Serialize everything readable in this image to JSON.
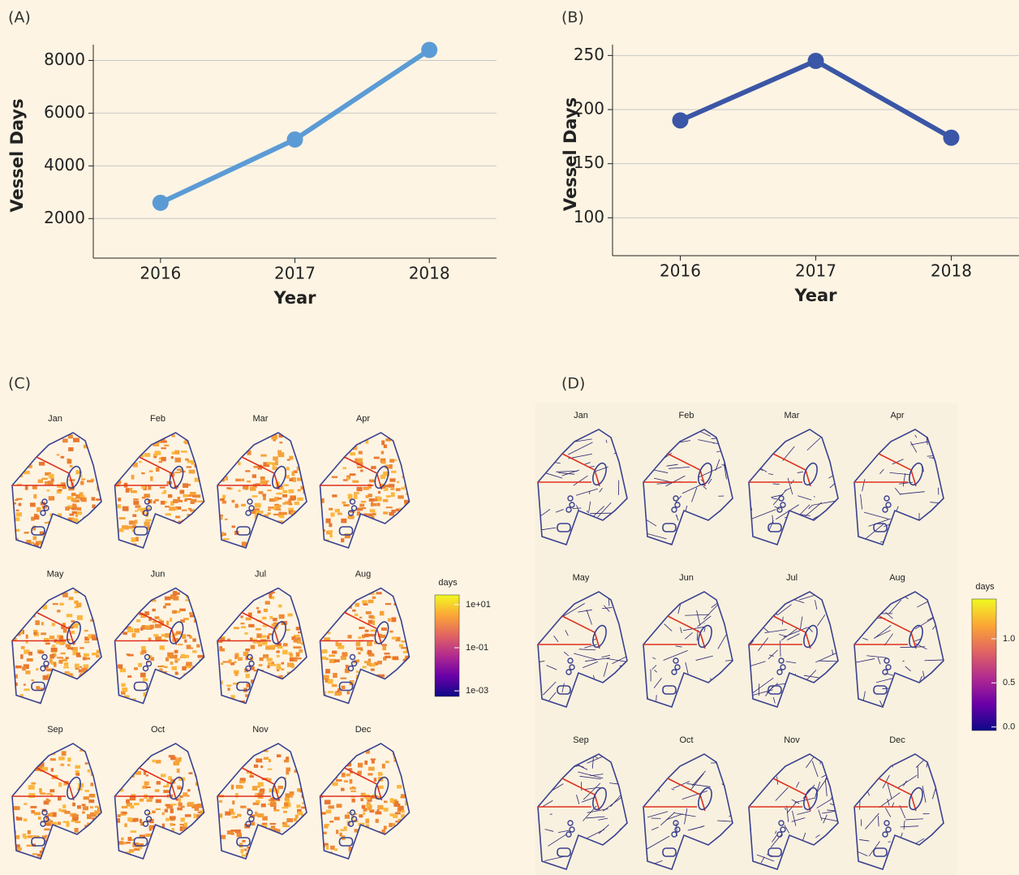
{
  "chart_data": [
    {
      "type": "line",
      "panel": "(A)",
      "x_label": "Year",
      "y_label": "Vessel Days",
      "categories": [
        "2016",
        "2017",
        "2018"
      ],
      "series": [
        {
          "color": "#5b9bd5",
          "values": [
            2600,
            5000,
            8400
          ]
        }
      ],
      "ylim": [
        500,
        8600
      ],
      "yticks": [
        2000,
        4000,
        6000,
        8000
      ],
      "grid": true
    },
    {
      "type": "line",
      "panel": "(B)",
      "x_label": "Year",
      "y_label": "Vessel Days",
      "categories": [
        "2016",
        "2017",
        "2018"
      ],
      "series": [
        {
          "color": "#3b56a6",
          "values": [
            190,
            245,
            174
          ]
        }
      ],
      "ylim": [
        65,
        260
      ],
      "yticks": [
        100,
        150,
        200,
        250
      ],
      "grid": true
    },
    {
      "type": "map",
      "panel": "(C)",
      "style": "heat",
      "categories": [
        "Jan",
        "Feb",
        "Mar",
        "Apr",
        "May",
        "Jun",
        "Jul",
        "Aug",
        "Sep",
        "Oct",
        "Nov",
        "Dec"
      ],
      "colorbar": {
        "title": "days",
        "log": true,
        "ylim": [
          0.00055,
          28
        ],
        "yticks": [
          {
            "value": 10,
            "label": "1e+01"
          },
          {
            "value": 0.1,
            "label": "1e-01"
          },
          {
            "value": 0.001,
            "label": "1e-03"
          }
        ],
        "colors": [
          "#0d0887",
          "#6a00a8",
          "#b12a90",
          "#e16462",
          "#fca636",
          "#f0f921"
        ]
      }
    },
    {
      "type": "map",
      "panel": "(D)",
      "style": "tracks",
      "categories": [
        "Jan",
        "Feb",
        "Mar",
        "Apr",
        "May",
        "Jun",
        "Jul",
        "Aug",
        "Sep",
        "Oct",
        "Nov",
        "Dec"
      ],
      "colorbar": {
        "title": "days",
        "log": false,
        "ylim": [
          -0.04,
          1.45
        ],
        "yticks": [
          {
            "value": 1,
            "label": "1.0"
          },
          0.5,
          {
            "value": 0,
            "label": "0.0"
          }
        ],
        "colors": [
          "#0d0887",
          "#6a00a8",
          "#b12a90",
          "#e16462",
          "#fca636",
          "#f0f921"
        ]
      }
    }
  ]
}
